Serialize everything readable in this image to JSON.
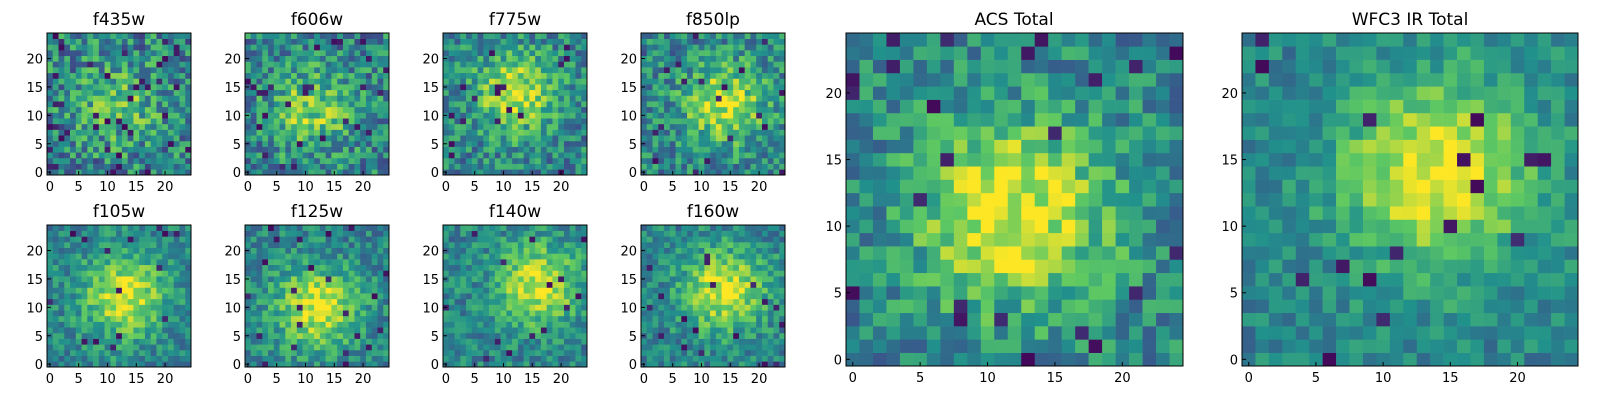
{
  "figure": {
    "colormap": "viridis",
    "colormap_stops": [
      "#440154",
      "#3b528b",
      "#21918c",
      "#5ec962",
      "#fde725"
    ]
  },
  "chart_data": [
    {
      "type": "heatmap",
      "title": "f435w",
      "grid_size": 25,
      "xticks": [
        0,
        5,
        10,
        15,
        20
      ],
      "yticks": [
        0,
        5,
        10,
        15,
        20
      ],
      "xlim": [
        0,
        24
      ],
      "ylim": [
        0,
        24
      ],
      "grid": false,
      "peak": {
        "x": 12,
        "y": 12
      },
      "peak_strength": 0.25,
      "noise_level": 0.55,
      "dark_pixel_fraction": 0.06,
      "seed": 11
    },
    {
      "type": "heatmap",
      "title": "f606w",
      "grid_size": 25,
      "xticks": [
        0,
        5,
        10,
        15,
        20
      ],
      "yticks": [
        0,
        5,
        10,
        15,
        20
      ],
      "xlim": [
        0,
        24
      ],
      "ylim": [
        0,
        24
      ],
      "grid": false,
      "peak": {
        "x": 11,
        "y": 11
      },
      "peak_strength": 0.35,
      "noise_level": 0.5,
      "dark_pixel_fraction": 0.04,
      "seed": 23
    },
    {
      "type": "heatmap",
      "title": "f775w",
      "grid_size": 25,
      "xticks": [
        0,
        5,
        10,
        15,
        20
      ],
      "yticks": [
        0,
        5,
        10,
        15,
        20
      ],
      "xlim": [
        0,
        24
      ],
      "ylim": [
        0,
        24
      ],
      "grid": false,
      "peak": {
        "x": 12,
        "y": 14
      },
      "peak_strength": 0.45,
      "noise_level": 0.45,
      "dark_pixel_fraction": 0.03,
      "seed": 37
    },
    {
      "type": "heatmap",
      "title": "f850lp",
      "grid_size": 25,
      "xticks": [
        0,
        5,
        10,
        15,
        20
      ],
      "yticks": [
        0,
        5,
        10,
        15,
        20
      ],
      "xlim": [
        0,
        24
      ],
      "ylim": [
        0,
        24
      ],
      "grid": false,
      "peak": {
        "x": 14,
        "y": 12
      },
      "peak_strength": 0.45,
      "noise_level": 0.45,
      "dark_pixel_fraction": 0.04,
      "seed": 41
    },
    {
      "type": "heatmap",
      "title": "f105w",
      "grid_size": 25,
      "xticks": [
        0,
        5,
        10,
        15,
        20
      ],
      "yticks": [
        0,
        5,
        10,
        15,
        20
      ],
      "xlim": [
        0,
        24
      ],
      "ylim": [
        0,
        24
      ],
      "grid": false,
      "peak": {
        "x": 13,
        "y": 12
      },
      "peak_strength": 0.5,
      "noise_level": 0.35,
      "dark_pixel_fraction": 0.03,
      "seed": 53
    },
    {
      "type": "heatmap",
      "title": "f125w",
      "grid_size": 25,
      "xticks": [
        0,
        5,
        10,
        15,
        20
      ],
      "yticks": [
        0,
        5,
        10,
        15,
        20
      ],
      "xlim": [
        0,
        24
      ],
      "ylim": [
        0,
        24
      ],
      "grid": false,
      "peak": {
        "x": 12,
        "y": 10
      },
      "peak_strength": 0.5,
      "noise_level": 0.35,
      "dark_pixel_fraction": 0.03,
      "seed": 67
    },
    {
      "type": "heatmap",
      "title": "f140w",
      "grid_size": 25,
      "xticks": [
        0,
        5,
        10,
        15,
        20
      ],
      "yticks": [
        0,
        5,
        10,
        15,
        20
      ],
      "xlim": [
        0,
        24
      ],
      "ylim": [
        0,
        24
      ],
      "grid": false,
      "peak": {
        "x": 16,
        "y": 14
      },
      "peak_strength": 0.5,
      "noise_level": 0.35,
      "dark_pixel_fraction": 0.02,
      "seed": 71
    },
    {
      "type": "heatmap",
      "title": "f160w",
      "grid_size": 25,
      "xticks": [
        0,
        5,
        10,
        15,
        20
      ],
      "yticks": [
        0,
        5,
        10,
        15,
        20
      ],
      "xlim": [
        0,
        24
      ],
      "ylim": [
        0,
        24
      ],
      "grid": false,
      "peak": {
        "x": 14,
        "y": 13
      },
      "peak_strength": 0.5,
      "noise_level": 0.35,
      "dark_pixel_fraction": 0.03,
      "seed": 83
    },
    {
      "type": "heatmap",
      "title": "ACS Total",
      "grid_size": 25,
      "xticks": [
        0,
        5,
        10,
        15,
        20
      ],
      "yticks": [
        0,
        5,
        10,
        15,
        20
      ],
      "xlim": [
        0,
        24
      ],
      "ylim": [
        0,
        24
      ],
      "grid": false,
      "peak": {
        "x": 12,
        "y": 11
      },
      "peak_strength": 0.55,
      "noise_level": 0.4,
      "dark_pixel_fraction": 0.04,
      "seed": 97
    },
    {
      "type": "heatmap",
      "title": "WFC3 IR Total",
      "grid_size": 25,
      "xticks": [
        0,
        5,
        10,
        15,
        20
      ],
      "yticks": [
        0,
        5,
        10,
        15,
        20
      ],
      "xlim": [
        0,
        24
      ],
      "ylim": [
        0,
        24
      ],
      "grid": false,
      "peak": {
        "x": 14,
        "y": 14
      },
      "peak_strength": 0.55,
      "noise_level": 0.28,
      "dark_pixel_fraction": 0.02,
      "seed": 101
    }
  ]
}
